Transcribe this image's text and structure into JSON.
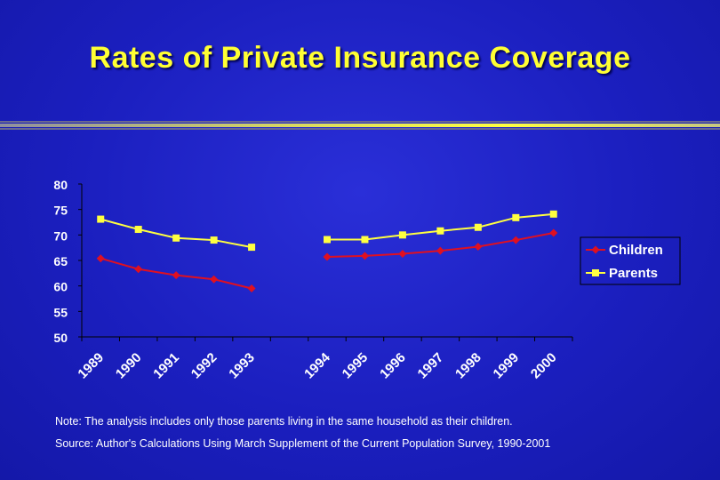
{
  "slide": {
    "title": "Rates of Private Insurance Coverage",
    "note": "Note: The analysis includes only those parents living in the same household as their children.",
    "source": "Source: Author's Calculations Using March Supplement of the Current Population Survey, 1990-2001"
  },
  "colors": {
    "title": "#ffff33",
    "children": "#e01020",
    "parents": "#ffff40",
    "background": "#1b1fbf",
    "text": "#ffffff"
  },
  "chart_data": {
    "type": "line",
    "title": "",
    "xlabel": "",
    "ylabel": "",
    "categories": [
      "1989",
      "1990",
      "1991",
      "1992",
      "1993",
      "",
      "1994",
      "1995",
      "1996",
      "1997",
      "1998",
      "1999",
      "2000"
    ],
    "ylim": [
      50,
      80
    ],
    "yticks": [
      80,
      75,
      70,
      65,
      60,
      55,
      50
    ],
    "grid": false,
    "legend": "right",
    "series": [
      {
        "name": "Children",
        "color": "#e01020",
        "marker": "diamond",
        "values": [
          65.4,
          63.3,
          62.1,
          61.3,
          59.5,
          null,
          65.7,
          65.9,
          66.3,
          66.9,
          67.7,
          69.0,
          70.4
        ]
      },
      {
        "name": "Parents",
        "color": "#ffff40",
        "marker": "square",
        "values": [
          73.1,
          71.1,
          69.4,
          69.0,
          67.6,
          null,
          69.1,
          69.1,
          70.0,
          70.8,
          71.5,
          73.4,
          74.1
        ]
      }
    ]
  }
}
